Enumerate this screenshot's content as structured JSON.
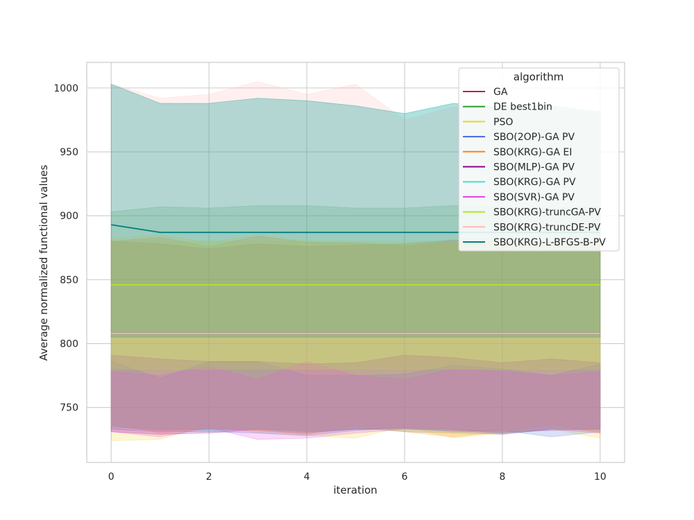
{
  "chart_data": {
    "type": "line",
    "xlabel": "iteration",
    "ylabel": "Average normalized functional values",
    "xlim": [
      -0.5,
      10.5
    ],
    "ylim": [
      707,
      1020
    ],
    "xticks": [
      0,
      2,
      4,
      6,
      8,
      10
    ],
    "yticks": [
      750,
      800,
      850,
      900,
      950,
      1000
    ],
    "grid": true,
    "legend": {
      "title": "algorithm",
      "placement": "top-right"
    },
    "x": [
      0,
      1,
      2,
      3,
      4,
      5,
      6,
      7,
      8,
      9,
      10
    ],
    "series": [
      {
        "name": "GA",
        "color": "#c2185b",
        "values": [
          808,
          808,
          808,
          808,
          808,
          808,
          808,
          808,
          808,
          808,
          808
        ],
        "lower": [
          735,
          733,
          733,
          732,
          730,
          733,
          733,
          732,
          731,
          732,
          733
        ],
        "upper": [
          880,
          878,
          874,
          878,
          876,
          877,
          878,
          881,
          880,
          879,
          880
        ]
      },
      {
        "name": "DE best1bin",
        "color": "#2ca02c",
        "values": [
          808,
          808,
          808,
          808,
          808,
          808,
          808,
          808,
          808,
          808,
          808
        ],
        "lower": [
          735,
          732,
          733,
          733,
          731,
          734,
          731,
          730,
          729,
          733,
          732
        ],
        "upper": [
          903,
          907,
          906,
          908,
          908,
          906,
          906,
          908,
          907,
          906,
          907
        ]
      },
      {
        "name": "PSO",
        "color": "#f2d01f",
        "values": [
          808,
          808,
          808,
          808,
          808,
          808,
          808,
          808,
          808,
          808,
          808
        ],
        "lower": [
          724,
          725,
          736,
          730,
          728,
          726,
          735,
          726,
          730,
          733,
          726
        ],
        "upper": [
          882,
          885,
          879,
          885,
          880,
          878,
          878,
          879,
          880,
          878,
          879
        ]
      },
      {
        "name": "SBO(2OP)-GA PV",
        "color": "#4169e1",
        "values": [
          808,
          808,
          808,
          808,
          808,
          808,
          808,
          808,
          808,
          808,
          808
        ],
        "lower": [
          733,
          731,
          731,
          730,
          728,
          732,
          734,
          731,
          732,
          727,
          731
        ],
        "upper": [
          786,
          773,
          786,
          786,
          775,
          775,
          776,
          783,
          780,
          775,
          784
        ]
      },
      {
        "name": "SBO(KRG)-GA EI",
        "color": "#ff7f0e",
        "values": [
          808,
          808,
          808,
          808,
          808,
          808,
          808,
          808,
          808,
          808,
          808
        ],
        "lower": [
          737,
          730,
          733,
          732,
          729,
          736,
          731,
          727,
          731,
          737,
          730
        ],
        "upper": [
          880,
          883,
          876,
          884,
          879,
          879,
          876,
          880,
          881,
          878,
          878
        ]
      },
      {
        "name": "SBO(MLP)-GA PV",
        "color": "#8b008b",
        "values": [
          808,
          808,
          808,
          808,
          808,
          808,
          808,
          808,
          808,
          808,
          808
        ],
        "lower": [
          731,
          729,
          730,
          733,
          731,
          733,
          734,
          733,
          730,
          733,
          733
        ],
        "upper": [
          791,
          788,
          786,
          786,
          784,
          785,
          791,
          789,
          785,
          788,
          785
        ]
      },
      {
        "name": "SBO(KRG)-GA PV",
        "color": "#40e0d0",
        "values": [
          808,
          808,
          808,
          808,
          808,
          808,
          808,
          808,
          808,
          808,
          808
        ],
        "lower": [
          735,
          733,
          732,
          733,
          731,
          733,
          733,
          731,
          730,
          733,
          733
        ],
        "upper": [
          1003,
          988,
          988,
          992,
          990,
          986,
          980,
          988,
          985,
          986,
          981
        ]
      },
      {
        "name": "SBO(SVR)-GA PV",
        "color": "#e040e0",
        "values": [
          808,
          808,
          808,
          808,
          808,
          808,
          808,
          808,
          808,
          808,
          808
        ],
        "lower": [
          731,
          727,
          734,
          725,
          726,
          730,
          733,
          732,
          729,
          733,
          730
        ],
        "upper": [
          778,
          775,
          782,
          772,
          786,
          775,
          772,
          780,
          778,
          775,
          778
        ]
      },
      {
        "name": "SBO(KRG)-truncGA-PV",
        "color": "#b4e61e",
        "values": [
          846,
          846,
          846,
          846,
          846,
          846,
          846,
          846,
          846,
          846,
          846
        ],
        "lower": [
          780,
          780,
          780,
          780,
          780,
          780,
          780,
          780,
          780,
          780,
          780
        ],
        "upper": [
          880,
          880,
          880,
          880,
          880,
          880,
          880,
          880,
          880,
          880,
          880
        ]
      },
      {
        "name": "SBO(KRG)-truncDE-PV",
        "color": "#ffb6b0",
        "values": [
          808,
          808,
          808,
          808,
          808,
          808,
          808,
          808,
          808,
          808,
          808
        ],
        "lower": [
          735,
          730,
          733,
          732,
          731,
          734,
          733,
          730,
          731,
          733,
          732
        ],
        "upper": [
          1003,
          992,
          995,
          1005,
          995,
          1003,
          975,
          985,
          985,
          983,
          982
        ]
      },
      {
        "name": "SBO(KRG)-L-BFGS-B-PV",
        "color": "#008080",
        "values": [
          893,
          887,
          887,
          887,
          887,
          887,
          887,
          887,
          887,
          887,
          887
        ],
        "lower": [
          805,
          805,
          805,
          805,
          805,
          805,
          805,
          805,
          805,
          805,
          805
        ],
        "upper": [
          1003,
          988,
          988,
          992,
          990,
          986,
          980,
          988,
          985,
          986,
          981
        ]
      }
    ]
  }
}
